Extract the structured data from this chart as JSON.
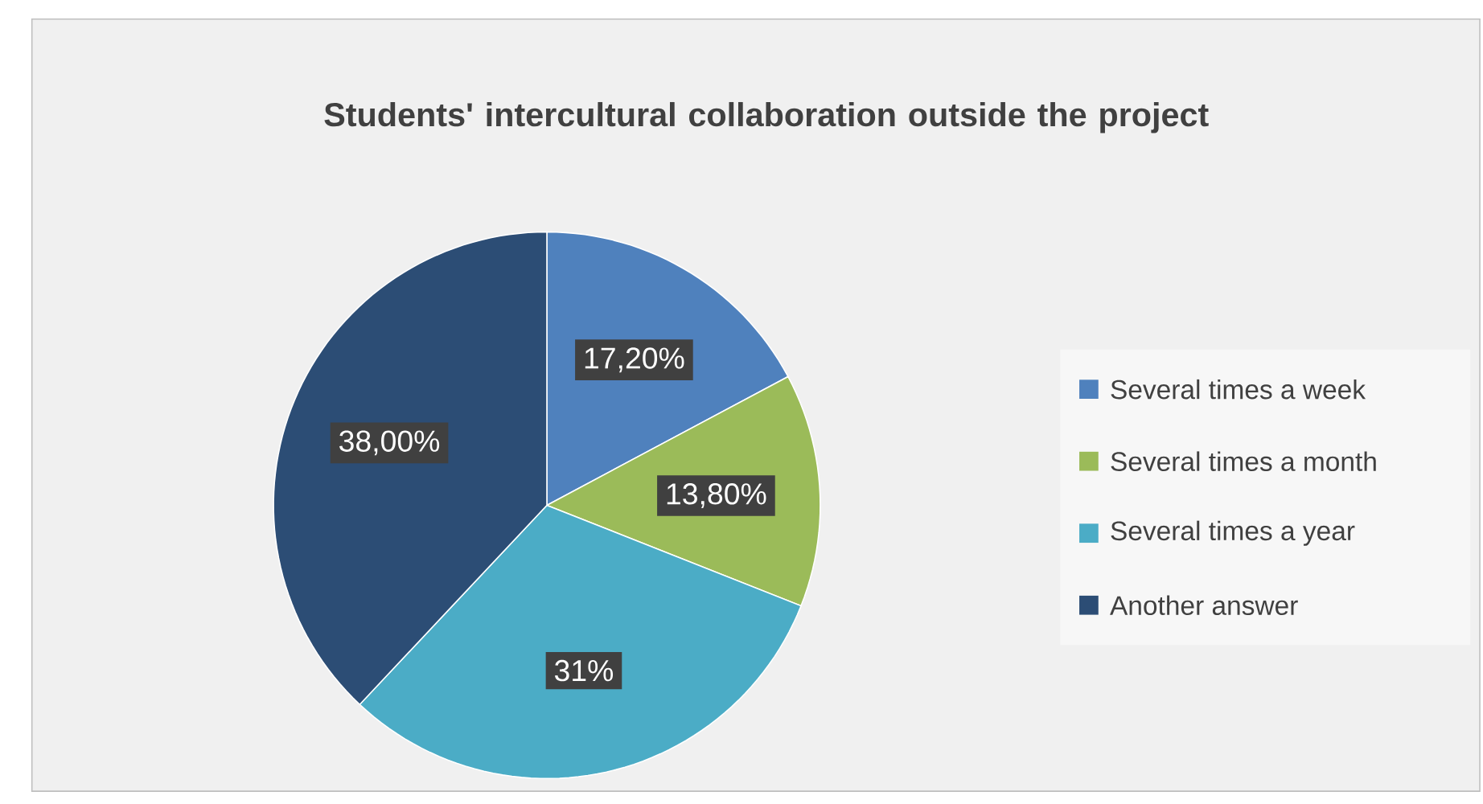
{
  "chart_data": {
    "type": "pie",
    "title": "Students' intercultural collaboration outside the project",
    "categories": [
      "Several times a week",
      "Several times a month",
      "Several times a year",
      "Another answer"
    ],
    "values": [
      17.2,
      13.8,
      31,
      38
    ],
    "value_labels": [
      "17,20%",
      "13,80%",
      "31%",
      "38,00%"
    ],
    "colors": [
      "#4f81bd",
      "#9bbb59",
      "#4bacc6",
      "#2c4d75"
    ],
    "legend": "right"
  }
}
